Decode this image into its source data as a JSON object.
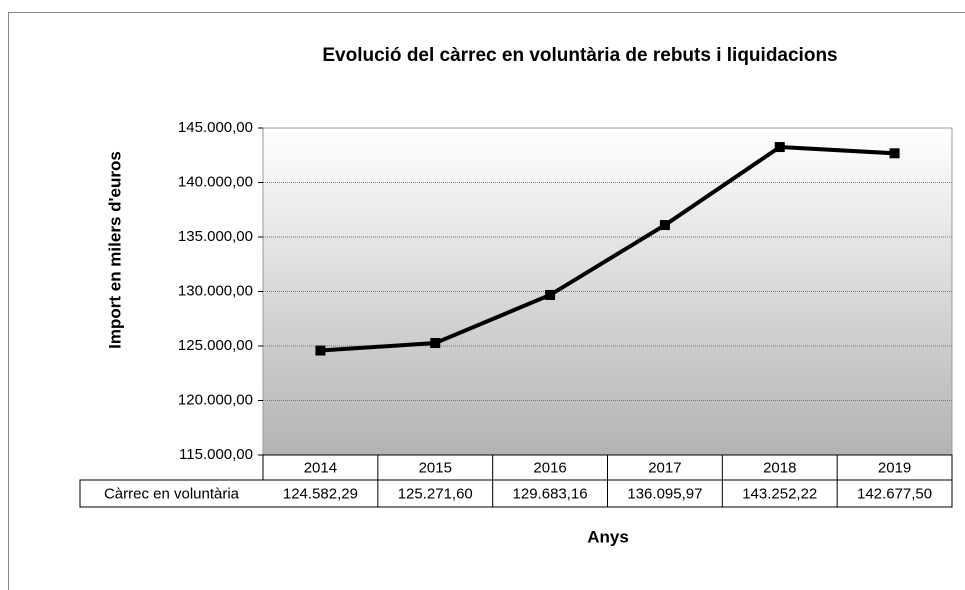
{
  "chart_data": {
    "type": "line",
    "title": "Evolució del càrrec en voluntària de rebuts i liquidacions",
    "y_label": "Import en milers d'euros",
    "x_label": "Anys",
    "categories": [
      "2014",
      "2015",
      "2016",
      "2017",
      "2018",
      "2019"
    ],
    "series": [
      {
        "name": "Càrrec en voluntària",
        "color": "#000000",
        "values": [
          124582.29,
          125271.6,
          129683.16,
          136095.97,
          143252.22,
          142677.5
        ],
        "value_labels": [
          "124.582,29",
          "125.271,60",
          "129.683,16",
          "136.095,97",
          "143.252,22",
          "142.677,50"
        ]
      }
    ],
    "ylim": [
      115000,
      145000
    ],
    "yticks": [
      {
        "value": 115000,
        "label": "115.000,00"
      },
      {
        "value": 120000,
        "label": "120.000,00"
      },
      {
        "value": 125000,
        "label": "125.000,00"
      },
      {
        "value": 130000,
        "label": "130.000,00"
      },
      {
        "value": 135000,
        "label": "135.000,00"
      },
      {
        "value": 140000,
        "label": "140.000,00"
      },
      {
        "value": 145000,
        "label": "145.000,00"
      }
    ],
    "grid": true
  }
}
